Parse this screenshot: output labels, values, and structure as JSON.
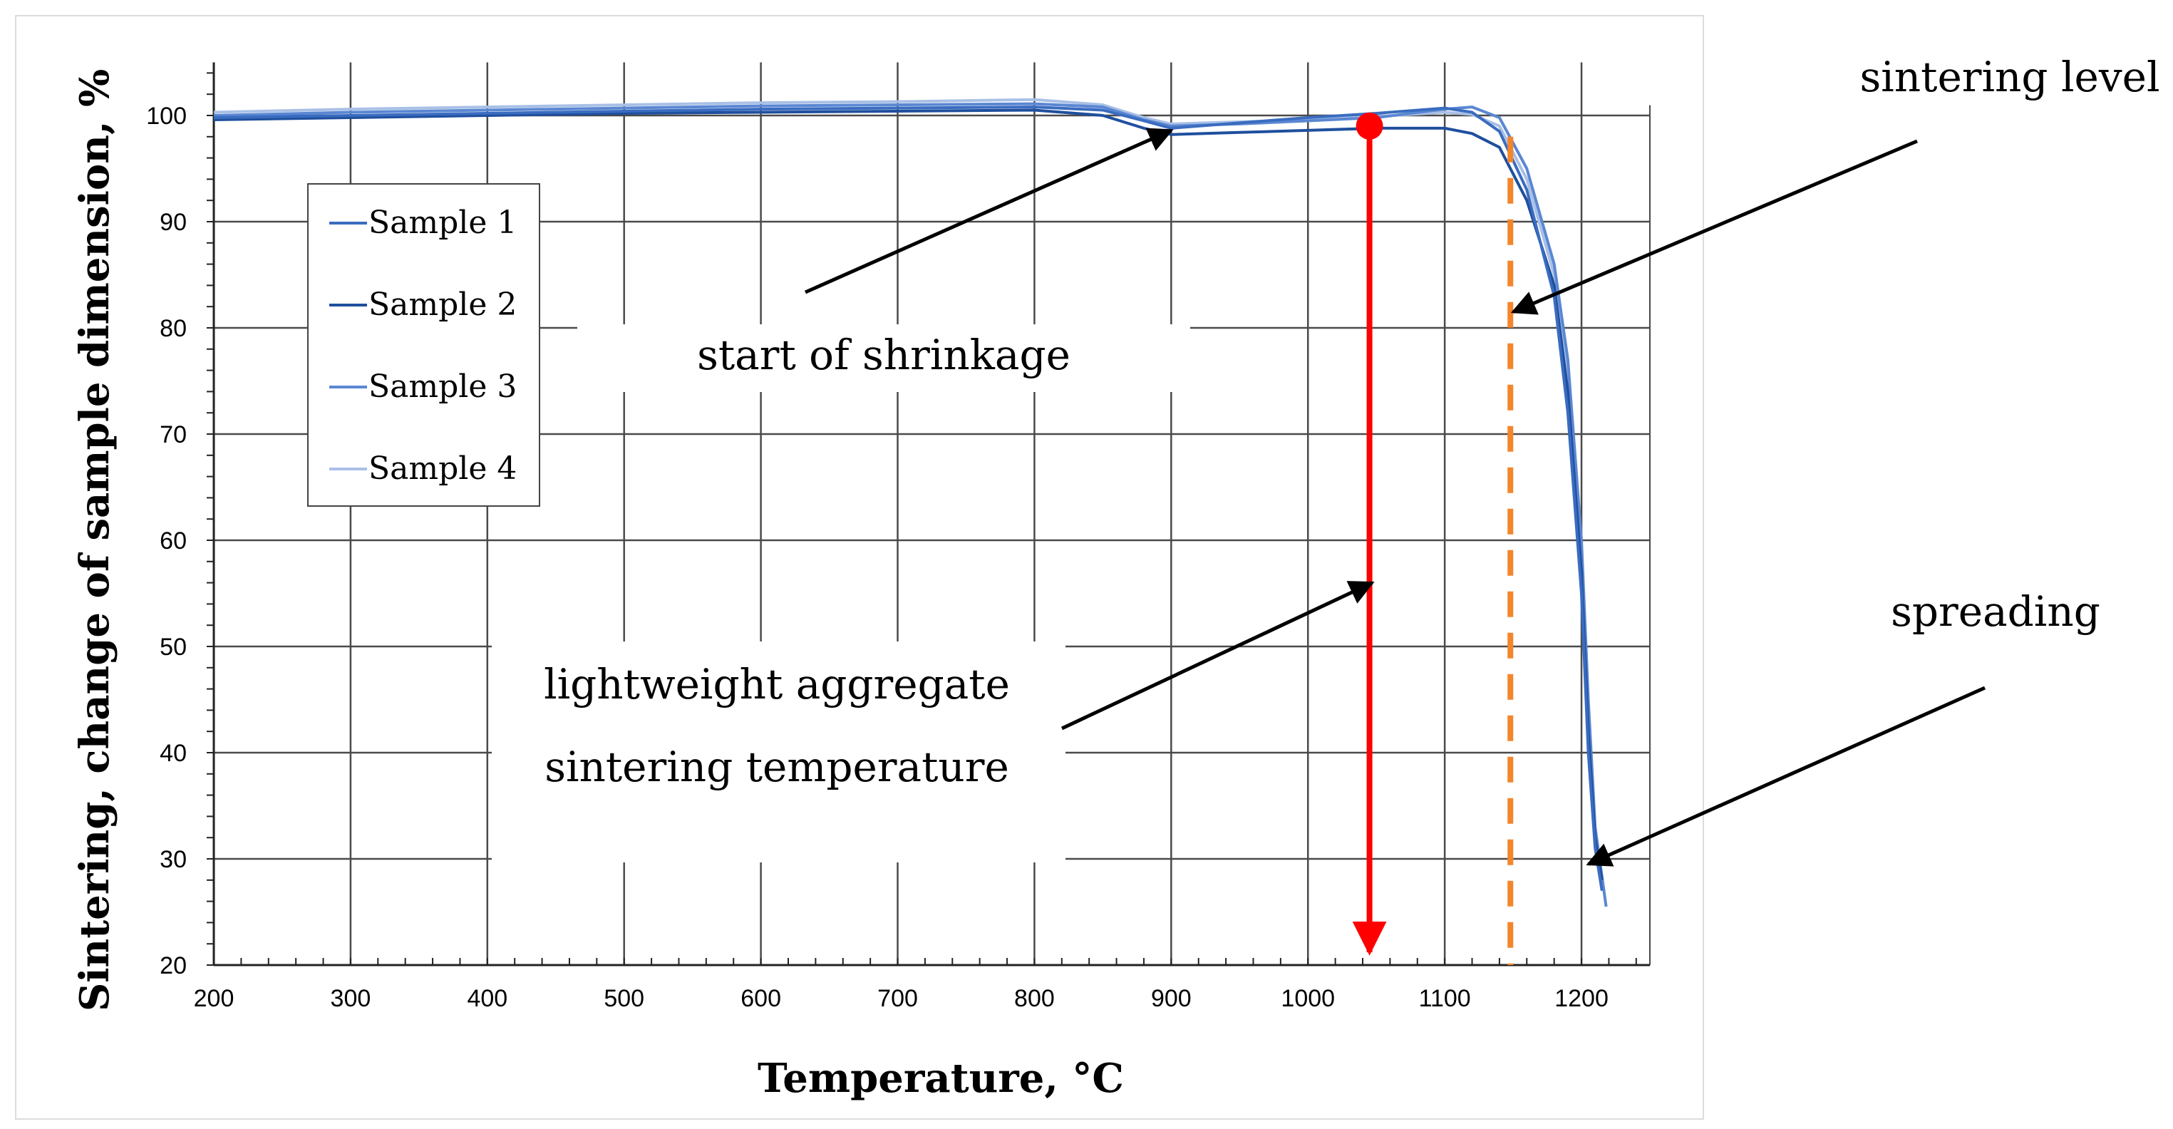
{
  "chart_data": {
    "type": "line",
    "title": "",
    "xlabel": "Temperature,  °C",
    "ylabel": "Sintering, change of sample dimension, %",
    "xlim": [
      200,
      1250
    ],
    "ylim": [
      20,
      105
    ],
    "xticks": [
      200,
      300,
      400,
      500,
      600,
      700,
      800,
      900,
      1000,
      1100,
      1200
    ],
    "yticks": [
      20,
      30,
      40,
      50,
      60,
      70,
      80,
      90,
      100
    ],
    "grid": true,
    "legend_position": "upper-left",
    "series": [
      {
        "name": "Sample 1",
        "color": "#3a6cc0",
        "x": [
          200,
          300,
          400,
          500,
          600,
          700,
          800,
          850,
          880,
          900,
          950,
          1000,
          1050,
          1100,
          1120,
          1140,
          1160,
          1180,
          1190,
          1200,
          1205,
          1210,
          1215
        ],
        "y": [
          99.8,
          100.0,
          100.2,
          100.4,
          100.6,
          100.7,
          100.8,
          100.5,
          99.5,
          98.8,
          99.3,
          99.8,
          100.2,
          100.7,
          100.3,
          98.5,
          93.0,
          83.0,
          72.0,
          55.0,
          40.0,
          31.0,
          27.0
        ]
      },
      {
        "name": "Sample 2",
        "color": "#1f4f9e",
        "x": [
          200,
          300,
          400,
          500,
          600,
          700,
          800,
          850,
          880,
          900,
          950,
          1000,
          1050,
          1100,
          1120,
          1140,
          1160,
          1180,
          1190,
          1200,
          1205,
          1210,
          1215
        ],
        "y": [
          99.6,
          99.8,
          100.0,
          100.2,
          100.3,
          100.4,
          100.5,
          100.0,
          98.8,
          98.2,
          98.4,
          98.6,
          98.8,
          98.8,
          98.3,
          97.0,
          92.0,
          84.0,
          74.0,
          57.0,
          42.0,
          32.0,
          28.0
        ]
      },
      {
        "name": "Sample 3",
        "color": "#5b87d2",
        "x": [
          200,
          300,
          400,
          500,
          600,
          700,
          800,
          850,
          880,
          900,
          950,
          1000,
          1050,
          1100,
          1120,
          1140,
          1160,
          1180,
          1190,
          1200,
          1205,
          1210,
          1218
        ],
        "y": [
          100.0,
          100.3,
          100.5,
          100.7,
          100.9,
          101.0,
          101.1,
          100.8,
          99.6,
          99.0,
          99.2,
          99.5,
          99.8,
          100.6,
          100.8,
          99.8,
          95.0,
          86.0,
          77.0,
          60.0,
          45.0,
          33.0,
          25.5
        ]
      },
      {
        "name": "Sample 4",
        "color": "#a9c0e6",
        "x": [
          200,
          300,
          400,
          500,
          600,
          700,
          800,
          850,
          880,
          900,
          950,
          1000,
          1050,
          1100,
          1120,
          1140,
          1160,
          1180,
          1190,
          1200,
          1205,
          1210,
          1215
        ],
        "y": [
          100.3,
          100.6,
          100.8,
          101.0,
          101.2,
          101.3,
          101.5,
          101.0,
          99.8,
          99.2,
          99.4,
          99.6,
          99.9,
          100.3,
          100.1,
          99.0,
          94.0,
          85.0,
          75.0,
          58.0,
          43.0,
          32.0,
          27.5
        ]
      }
    ],
    "markers": {
      "sintering_temperature": {
        "x": 1045,
        "y_top": 99,
        "y_bottom": 20,
        "color": "#ff0000"
      },
      "sintering_level": {
        "x": 1148,
        "y_top": 98,
        "y_bottom": 20,
        "color": "#f5852a"
      }
    },
    "annotations": [
      {
        "id": "shrinkage",
        "lines": [
          "start of shrinkage"
        ],
        "arrow_to": [
          900,
          98.6
        ]
      },
      {
        "id": "sintering-level",
        "lines": [
          "sintering level"
        ],
        "arrow_to": [
          1150,
          81.5
        ]
      },
      {
        "id": "spreading",
        "lines": [
          "spreading"
        ],
        "arrow_to": [
          1205,
          29.5
        ]
      },
      {
        "id": "lightweight",
        "lines": [
          "lightweight aggregate",
          "sintering temperature"
        ],
        "arrow_to": [
          1047,
          56
        ]
      }
    ]
  }
}
